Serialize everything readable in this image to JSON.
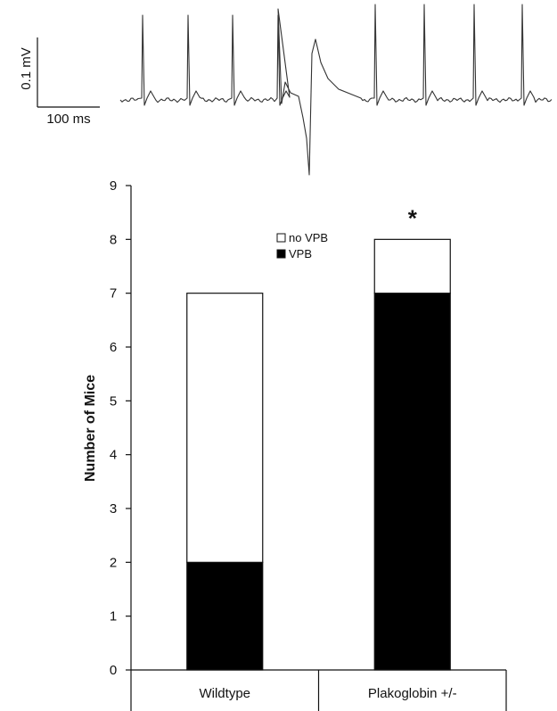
{
  "scalebar": {
    "voltage_label": "0.1 mV",
    "time_label": "100 ms"
  },
  "chart_data": {
    "type": "bar",
    "stacked": true,
    "title": "",
    "xlabel": "",
    "ylabel": "Number of Mice",
    "ylim": [
      0,
      9
    ],
    "yticks": [
      "0",
      "1",
      "2",
      "3",
      "4",
      "5",
      "6",
      "7",
      "8",
      "9"
    ],
    "categories": [
      "Wildtype",
      "Plakoglobin +/-"
    ],
    "series": [
      {
        "name": "VPB",
        "values": [
          2,
          7
        ],
        "color": "#000000"
      },
      {
        "name": "no VPB",
        "values": [
          5,
          1
        ],
        "color": "#ffffff"
      }
    ],
    "legend": [
      "no VPB",
      "VPB"
    ],
    "legend_position": "top-center",
    "annotations": [
      {
        "category": "Plakoglobin +/-",
        "text": "*"
      }
    ],
    "grid": false
  }
}
